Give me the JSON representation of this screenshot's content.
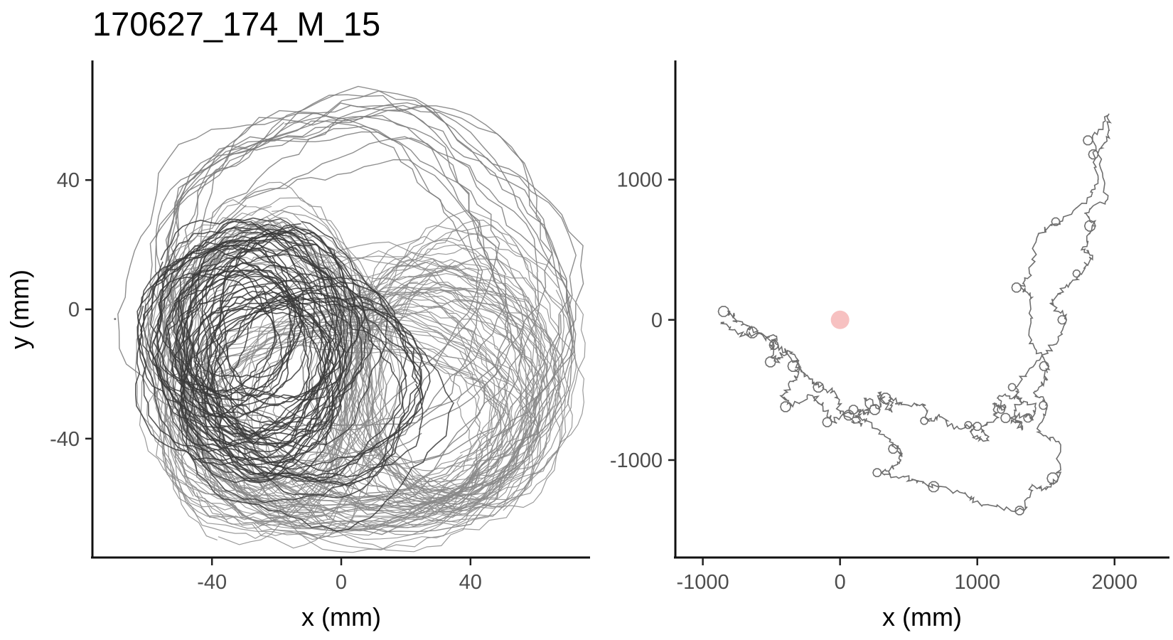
{
  "title": "170627_174_M_15",
  "colors": {
    "background": "#ffffff",
    "axis": "#111111",
    "tick_label": "#4d4d4d",
    "track_light": "#8a8a8a",
    "track_dark": "#3a3a3a",
    "track_mid": "#6e6e6e",
    "start_marker": "#f4a6a6"
  },
  "chart_data": [
    {
      "type": "path",
      "name": "local-arena",
      "xlabel": "x (mm)",
      "ylabel": "y (mm)",
      "xlim": [
        -77,
        77
      ],
      "ylim": [
        -77,
        77
      ],
      "x_ticks": [
        -40,
        0,
        40
      ],
      "x_tick_labels": [
        "-40",
        "0",
        "40"
      ],
      "y_ticks": [
        -40,
        0,
        40
      ],
      "y_tick_labels": [
        "-40",
        "0",
        "40"
      ],
      "grid": false,
      "series": [
        {
          "role": "outer-loops",
          "color": "#7a7a7a",
          "loops": [
            {
              "cx": 5,
              "cy": 2,
              "rx": 62,
              "ry": 63
            },
            {
              "cx": 0,
              "cy": 5,
              "rx": 60,
              "ry": 58
            },
            {
              "cx": -8,
              "cy": 8,
              "rx": 55,
              "ry": 52
            },
            {
              "cx": 10,
              "cy": -5,
              "rx": 58,
              "ry": 60
            }
          ]
        },
        {
          "role": "dense-light",
          "color": "#8a8a8a",
          "loops": [
            {
              "cx": -22,
              "cy": -18,
              "rx": 32,
              "ry": 45
            },
            {
              "cx": 10,
              "cy": -30,
              "rx": 45,
              "ry": 38
            },
            {
              "cx": 30,
              "cy": -25,
              "rx": 35,
              "ry": 35
            },
            {
              "cx": -25,
              "cy": -20,
              "rx": 28,
              "ry": 40
            },
            {
              "cx": 0,
              "cy": -35,
              "rx": 50,
              "ry": 30
            },
            {
              "cx": 35,
              "cy": -20,
              "rx": 30,
              "ry": 40
            }
          ]
        },
        {
          "role": "dense-dark",
          "color": "#3a3a3a",
          "loops": [
            {
              "cx": -30,
              "cy": -10,
              "rx": 28,
              "ry": 32
            },
            {
              "cx": -20,
              "cy": -5,
              "rx": 25,
              "ry": 30
            },
            {
              "cx": -25,
              "cy": -20,
              "rx": 22,
              "ry": 26
            },
            {
              "cx": -10,
              "cy": -25,
              "rx": 35,
              "ry": 32
            },
            {
              "cx": -35,
              "cy": -5,
              "rx": 20,
              "ry": 22
            }
          ]
        }
      ],
      "start": {
        "x": -70,
        "y": -3
      }
    },
    {
      "type": "path",
      "name": "global-trajectory",
      "xlabel": "x (mm)",
      "ylabel": "",
      "xlim": [
        -1200,
        2400
      ],
      "ylim": [
        -1700,
        1850
      ],
      "x_ticks": [
        -1000,
        0,
        1000,
        2000
      ],
      "x_tick_labels": [
        "-1000",
        "0",
        "1000",
        "2000"
      ],
      "y_ticks": [
        -1000,
        0,
        1000
      ],
      "y_tick_labels": [
        "-1000",
        "0",
        "1000"
      ],
      "grid": false,
      "start_marker": {
        "x": 0,
        "y": 0,
        "color": "#f4a6a6"
      },
      "series": [
        {
          "role": "trajectory",
          "color": "#6e6e6e",
          "x": [
            -870,
            -740,
            -600,
            -450,
            -290,
            -230,
            -120,
            -30,
            0,
            100,
            190,
            370,
            420,
            450,
            420,
            300,
            470,
            560,
            720,
            930,
            1040,
            1340,
            1400,
            1500,
            1590,
            1600,
            1440,
            1510,
            1410,
            1500,
            1520,
            1380,
            1400,
            1320,
            1380,
            1450,
            1600,
            1830,
            1880,
            1840,
            1960,
            1950,
            1880,
            1950,
            1780,
            1860,
            1770,
            1840,
            1750,
            1640,
            1540,
            1650,
            1550,
            1440,
            1280,
            1290,
            1420,
            1400,
            1280,
            1330,
            1240,
            1320,
            1160,
            1200,
            1110,
            1140,
            1030,
            1080,
            970,
            960,
            830,
            720,
            640,
            600,
            430,
            370,
            380,
            280,
            290,
            190,
            200,
            130,
            150,
            30,
            -60,
            -130,
            -200,
            -360,
            -420,
            -340,
            -300,
            -330,
            -400,
            -470,
            -500,
            -460,
            -600,
            -700,
            -780,
            -810
          ],
          "y": [
            -20,
            -100,
            -100,
            -180,
            -340,
            -420,
            -480,
            -530,
            -650,
            -680,
            -720,
            -860,
            -920,
            -970,
            -1030,
            -1090,
            -1120,
            -1160,
            -1190,
            -1260,
            -1320,
            -1360,
            -1180,
            -1210,
            -1130,
            -880,
            -800,
            -610,
            -520,
            -420,
            -330,
            -170,
            160,
            230,
            330,
            620,
            700,
            880,
            1020,
            1280,
            1470,
            1320,
            1180,
            860,
            760,
            670,
            520,
            460,
            330,
            230,
            120,
            0,
            -180,
            -290,
            -480,
            -560,
            -620,
            -700,
            -680,
            -780,
            -700,
            -560,
            -540,
            -640,
            -600,
            -700,
            -760,
            -860,
            -840,
            -750,
            -780,
            -680,
            -720,
            -600,
            -600,
            -560,
            -660,
            -520,
            -640,
            -560,
            -680,
            -640,
            -760,
            -680,
            -730,
            -610,
            -540,
            -620,
            -540,
            -440,
            -330,
            -250,
            -220,
            -300,
            -210,
            -140,
            -90,
            -30,
            20,
            60
          ]
        }
      ]
    }
  ]
}
